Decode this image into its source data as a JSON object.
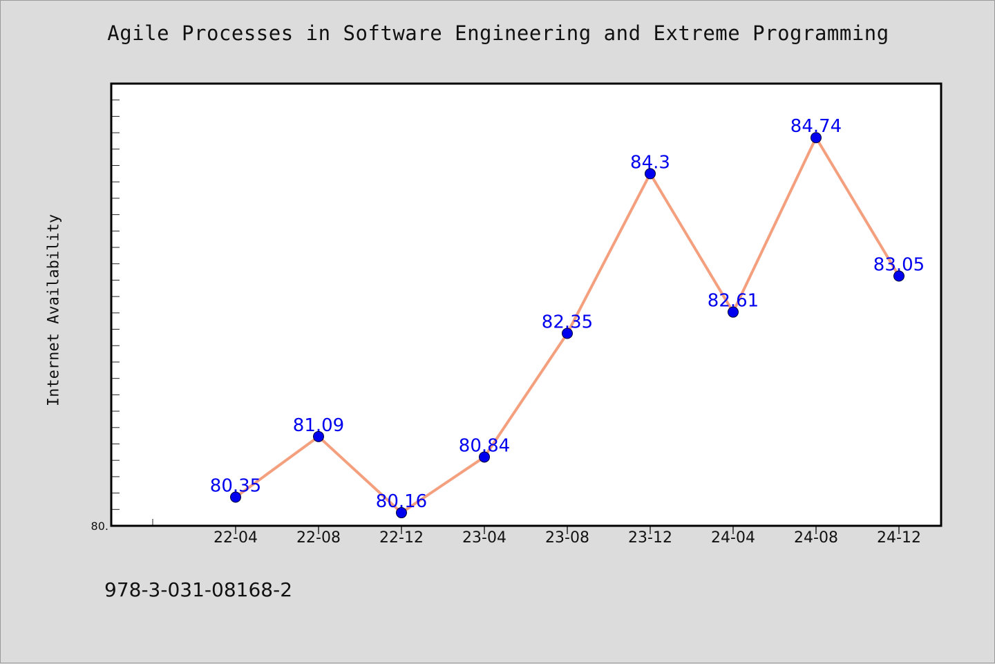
{
  "chart_data": {
    "type": "line",
    "title": "Agile Processes in Software Engineering and Extreme Programming",
    "xlabel": "",
    "ylabel": "Internet Availability",
    "categories": [
      "22-04",
      "22-08",
      "22-12",
      "23-04",
      "23-08",
      "23-12",
      "24-04",
      "24-08",
      "24-12"
    ],
    "series": [
      {
        "values": [
          80.35,
          81.09,
          80.16,
          80.84,
          82.35,
          84.3,
          82.61,
          84.74,
          83.05
        ]
      }
    ],
    "data_labels": [
      "80.35",
      "81.09",
      "80.16",
      "80.84",
      "82.35",
      "84.3",
      "82.61",
      "84.74",
      "83.05"
    ],
    "ylim": [
      80.0,
      85.4
    ],
    "y_min_label": "80.",
    "grid": false,
    "line_color": "#f4a07e",
    "marker_color": "#0000ee",
    "label_color": "#0000ee"
  },
  "footer": {
    "code": "978-3-031-08168-2"
  }
}
